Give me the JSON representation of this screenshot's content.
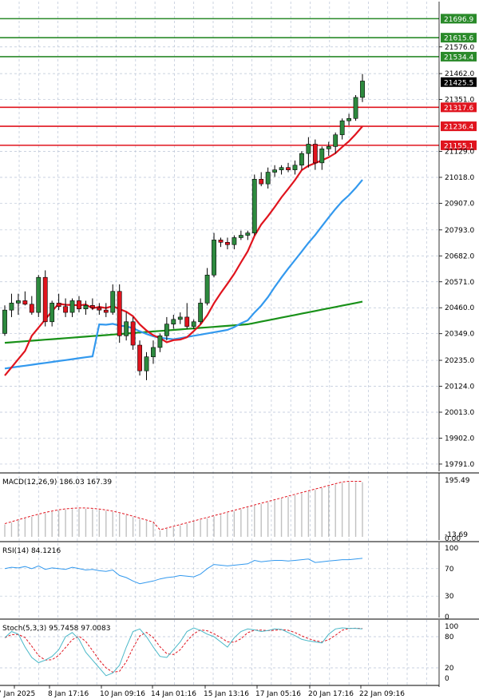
{
  "chart_data": {
    "type": "candlestick",
    "price_axis_ticks": [
      "21576.0",
      "21462.0",
      "21351.0",
      "21129.0",
      "21018.0",
      "20907.0",
      "20793.0",
      "20682.0",
      "20571.0",
      "20460.0",
      "20349.0",
      "20235.0",
      "20124.0",
      "20013.0",
      "19902.0",
      "19791.0"
    ],
    "price_range": [
      19760,
      21770
    ],
    "resistance_levels": [
      "21696.9",
      "21615.6",
      "21534.4"
    ],
    "support_levels": [
      "21317.6",
      "21236.4",
      "21155.1"
    ],
    "current_price": "21425.5",
    "time_labels": [
      "7 Jan 2025",
      "8 Jan 17:16",
      "10 Jan 09:16",
      "14 Jan 01:16",
      "15 Jan 13:16",
      "17 Jan 05:16",
      "20 Jan 17:16",
      "22 Jan 09:16"
    ],
    "candles": [
      [
        20350,
        20470,
        20340,
        20450
      ],
      [
        20450,
        20520,
        20420,
        20480
      ],
      [
        20480,
        20520,
        20430,
        20490
      ],
      [
        20490,
        20530,
        20470,
        20475
      ],
      [
        20475,
        20510,
        20430,
        20440
      ],
      [
        20440,
        20600,
        20420,
        20590
      ],
      [
        20590,
        20620,
        20380,
        20400
      ],
      [
        20400,
        20490,
        20380,
        20480
      ],
      [
        20480,
        20520,
        20450,
        20465
      ],
      [
        20465,
        20500,
        20420,
        20440
      ],
      [
        20440,
        20500,
        20420,
        20490
      ],
      [
        20490,
        20510,
        20440,
        20455
      ],
      [
        20455,
        20490,
        20430,
        20470
      ],
      [
        20470,
        20500,
        20450,
        20460
      ],
      [
        20460,
        20480,
        20430,
        20450
      ],
      [
        20450,
        20480,
        20420,
        20440
      ],
      [
        20440,
        20560,
        20430,
        20530
      ],
      [
        20530,
        20560,
        20310,
        20340
      ],
      [
        20340,
        20440,
        20320,
        20400
      ],
      [
        20400,
        20420,
        20280,
        20300
      ],
      [
        20300,
        20320,
        20170,
        20190
      ],
      [
        20190,
        20270,
        20150,
        20250
      ],
      [
        20250,
        20320,
        20220,
        20290
      ],
      [
        20290,
        20350,
        20270,
        20340
      ],
      [
        20340,
        20420,
        20320,
        20390
      ],
      [
        20390,
        20430,
        20370,
        20410
      ],
      [
        20410,
        20440,
        20390,
        20420
      ],
      [
        20420,
        20480,
        20370,
        20380
      ],
      [
        20380,
        20410,
        20370,
        20400
      ],
      [
        20400,
        20500,
        20390,
        20480
      ],
      [
        20480,
        20630,
        20470,
        20600
      ],
      [
        20600,
        20780,
        20590,
        20750
      ],
      [
        20750,
        20760,
        20720,
        20740
      ],
      [
        20740,
        20760,
        20710,
        20730
      ],
      [
        20730,
        20770,
        20710,
        20760
      ],
      [
        20760,
        20790,
        20750,
        20770
      ],
      [
        20770,
        20790,
        20750,
        20780
      ],
      [
        20780,
        21030,
        20770,
        21010
      ],
      [
        21010,
        21040,
        20980,
        20990
      ],
      [
        20990,
        21060,
        20970,
        21040
      ],
      [
        21040,
        21070,
        21020,
        21050
      ],
      [
        21050,
        21070,
        21030,
        21060
      ],
      [
        21060,
        21080,
        21040,
        21050
      ],
      [
        21050,
        21090,
        21030,
        21070
      ],
      [
        21070,
        21130,
        21050,
        21120
      ],
      [
        21120,
        21190,
        21060,
        21160
      ],
      [
        21160,
        21180,
        21050,
        21080
      ],
      [
        21080,
        21150,
        21050,
        21140
      ],
      [
        21140,
        21170,
        21110,
        21150
      ],
      [
        21150,
        21210,
        21120,
        21200
      ],
      [
        21200,
        21270,
        21180,
        21260
      ],
      [
        21260,
        21290,
        21240,
        21270
      ],
      [
        21270,
        21370,
        21260,
        21360
      ],
      [
        21360,
        21460,
        21340,
        21430
      ]
    ],
    "indicators": {
      "macd": {
        "label": "MACD(12,26,9) 186.03 167.39",
        "axis_top": "195.49",
        "axis_bottom": "-13.69",
        "axis_bottom2": "0.00"
      },
      "rsi": {
        "label": "RSI(14) 84.1216",
        "levels": [
          "100",
          "70",
          "30",
          "0"
        ]
      },
      "stoch": {
        "label": "Stoch(5,3,3) 95.7458 97.0083",
        "levels": [
          "100",
          "80",
          "20",
          "0"
        ]
      }
    },
    "colors": {
      "bull": "#2d8a3e",
      "bear": "#e0141e",
      "ma_fast": "#e0141e",
      "ma_mid": "#3399ee",
      "ma_slow": "#199119",
      "resistance": "#2a8a2a",
      "support": "#e0141e",
      "signal": "#e0141e",
      "histogram": "#c0c0c0",
      "rsi_line": "#3399ee",
      "stoch_main": "#49b8c8"
    }
  }
}
